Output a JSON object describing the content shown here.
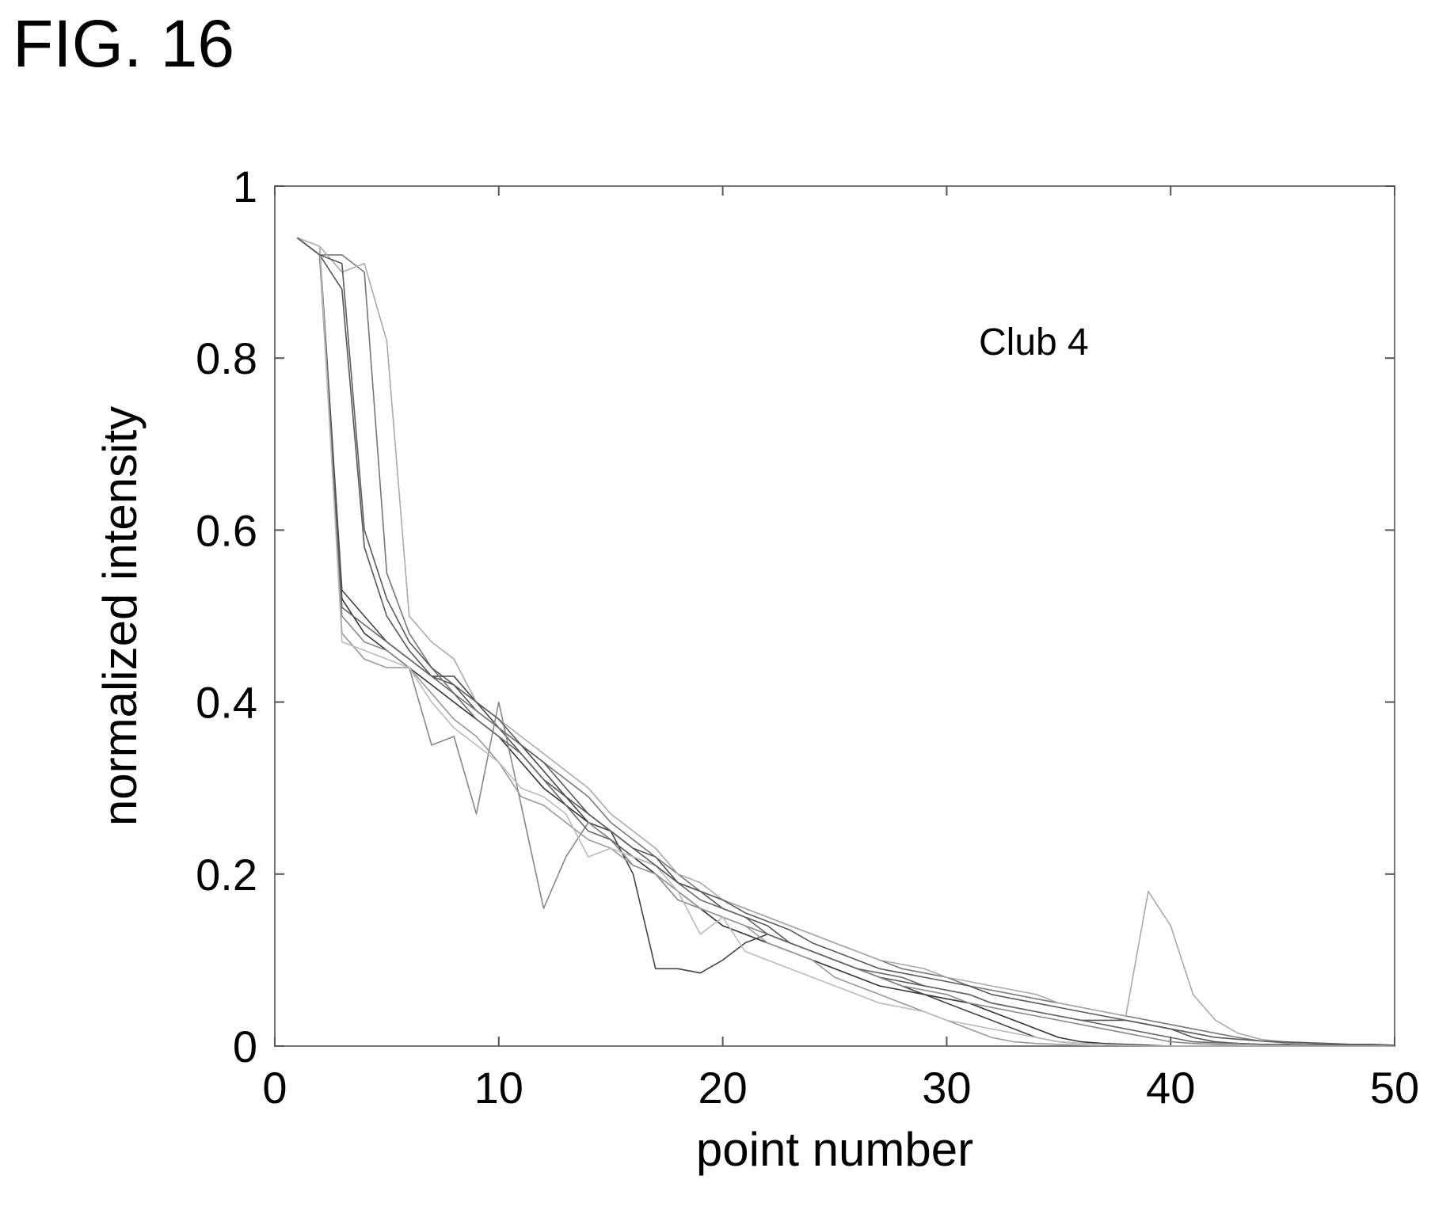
{
  "figure_label": "FIG. 16",
  "chart_data": {
    "type": "line",
    "title": "",
    "xlabel": "point number",
    "ylabel": "normalized intensity",
    "annotation": "Club 4",
    "xlim": [
      0,
      50
    ],
    "ylim": [
      0,
      1
    ],
    "xticks": [
      0,
      10,
      20,
      30,
      40,
      50
    ],
    "xtick_labels": [
      "0",
      "10",
      "20",
      "30",
      "40",
      "50"
    ],
    "yticks": [
      0,
      0.2,
      0.4,
      0.6,
      0.8,
      1
    ],
    "ytick_labels": [
      "0",
      "0.2",
      "0.4",
      "0.6",
      "0.8",
      "1"
    ],
    "grid": false,
    "legend": "none",
    "x": [
      1,
      2,
      3,
      4,
      5,
      6,
      7,
      8,
      9,
      10,
      11,
      12,
      13,
      14,
      15,
      16,
      17,
      18,
      19,
      20,
      21,
      22,
      23,
      24,
      25,
      26,
      27,
      28,
      29,
      30,
      31,
      32,
      33,
      34,
      35,
      36,
      37,
      38,
      39,
      40,
      41,
      42,
      43,
      44,
      45,
      46,
      47,
      48,
      49,
      50
    ],
    "series": [
      {
        "color": "#333333",
        "values": [
          0.94,
          0.92,
          0.52,
          0.48,
          0.46,
          0.44,
          0.42,
          0.4,
          0.38,
          0.36,
          0.33,
          0.3,
          0.28,
          0.26,
          0.24,
          0.22,
          0.2,
          0.18,
          0.16,
          0.14,
          0.13,
          0.12,
          0.11,
          0.1,
          0.09,
          0.08,
          0.07,
          0.065,
          0.06,
          0.055,
          0.05,
          0.04,
          0.03,
          0.02,
          0.01,
          0.005,
          0.003,
          0.002,
          0.001,
          0,
          0,
          0,
          0,
          0,
          0,
          0,
          0,
          0,
          0,
          0
        ]
      },
      {
        "color": "#555555",
        "values": [
          0.94,
          0.92,
          0.88,
          0.58,
          0.5,
          0.46,
          0.43,
          0.42,
          0.39,
          0.37,
          0.34,
          0.31,
          0.29,
          0.27,
          0.25,
          0.23,
          0.22,
          0.19,
          0.18,
          0.16,
          0.15,
          0.14,
          0.12,
          0.11,
          0.1,
          0.09,
          0.08,
          0.075,
          0.07,
          0.065,
          0.06,
          0.05,
          0.045,
          0.04,
          0.035,
          0.03,
          0.03,
          0.03,
          0.025,
          0.02,
          0.01,
          0.005,
          0.003,
          0.002,
          0.002,
          0.001,
          0.001,
          0.001,
          0.001,
          0.001
        ]
      },
      {
        "color": "#444444",
        "values": [
          0.94,
          0.93,
          0.53,
          0.5,
          0.47,
          0.45,
          0.43,
          0.43,
          0.4,
          0.37,
          0.35,
          0.32,
          0.29,
          0.26,
          0.25,
          0.2,
          0.09,
          0.09,
          0.085,
          0.1,
          0.12,
          0.13,
          0.12,
          0.11,
          0.1,
          0.09,
          0.08,
          0.07,
          0.06,
          0.05,
          0.04,
          0.03,
          0.02,
          0.01,
          0.005,
          0.003,
          0.002,
          0.001,
          0,
          0,
          0,
          0,
          0,
          0,
          0,
          0,
          0,
          0,
          0,
          0
        ]
      },
      {
        "color": "#777777",
        "values": [
          0.94,
          0.92,
          0.92,
          0.9,
          0.55,
          0.48,
          0.44,
          0.41,
          0.39,
          0.37,
          0.35,
          0.33,
          0.31,
          0.29,
          0.26,
          0.24,
          0.22,
          0.2,
          0.18,
          0.17,
          0.16,
          0.15,
          0.14,
          0.13,
          0.12,
          0.11,
          0.1,
          0.09,
          0.085,
          0.08,
          0.07,
          0.065,
          0.06,
          0.055,
          0.05,
          0.045,
          0.04,
          0.035,
          0.03,
          0.025,
          0.02,
          0.015,
          0.01,
          0.006,
          0.004,
          0.003,
          0.002,
          0.002,
          0.001,
          0.001
        ]
      },
      {
        "color": "#888888",
        "values": [
          0.94,
          0.93,
          0.5,
          0.47,
          0.46,
          0.44,
          0.35,
          0.36,
          0.27,
          0.4,
          0.28,
          0.16,
          0.22,
          0.26,
          0.24,
          0.21,
          0.2,
          0.17,
          0.16,
          0.15,
          0.14,
          0.13,
          0.12,
          0.11,
          0.1,
          0.09,
          0.08,
          0.07,
          0.065,
          0.06,
          0.05,
          0.045,
          0.04,
          0.035,
          0.03,
          0.025,
          0.02,
          0.015,
          0.01,
          0.005,
          0.003,
          0.002,
          0.001,
          0,
          0,
          0,
          0,
          0,
          0,
          0
        ]
      },
      {
        "color": "#999999",
        "values": [
          0.94,
          0.92,
          0.48,
          0.45,
          0.44,
          0.44,
          0.41,
          0.38,
          0.36,
          0.33,
          0.29,
          0.28,
          0.26,
          0.24,
          0.23,
          0.21,
          0.2,
          0.18,
          0.16,
          0.15,
          0.14,
          0.12,
          0.11,
          0.1,
          0.08,
          0.07,
          0.06,
          0.05,
          0.04,
          0.03,
          0.02,
          0.01,
          0.005,
          0.003,
          0.002,
          0.001,
          0,
          0,
          0,
          0,
          0,
          0,
          0,
          0,
          0,
          0,
          0,
          0,
          0,
          0
        ]
      },
      {
        "color": "#aaaaaa",
        "values": [
          0.94,
          0.93,
          0.9,
          0.91,
          0.82,
          0.5,
          0.47,
          0.45,
          0.4,
          0.38,
          0.36,
          0.34,
          0.32,
          0.3,
          0.27,
          0.25,
          0.23,
          0.2,
          0.19,
          0.17,
          0.16,
          0.15,
          0.14,
          0.13,
          0.12,
          0.11,
          0.1,
          0.095,
          0.09,
          0.08,
          0.075,
          0.07,
          0.065,
          0.06,
          0.05,
          0.045,
          0.04,
          0.035,
          0.18,
          0.14,
          0.06,
          0.03,
          0.015,
          0.008,
          0.005,
          0.004,
          0.003,
          0.002,
          0.001,
          0.001
        ]
      },
      {
        "color": "#666666",
        "values": [
          0.94,
          0.92,
          0.51,
          0.49,
          0.47,
          0.45,
          0.43,
          0.41,
          0.38,
          0.36,
          0.34,
          0.31,
          0.28,
          0.25,
          0.24,
          0.22,
          0.21,
          0.19,
          0.17,
          0.16,
          0.15,
          0.13,
          0.12,
          0.11,
          0.1,
          0.09,
          0.085,
          0.08,
          0.07,
          0.065,
          0.06,
          0.05,
          0.045,
          0.04,
          0.035,
          0.03,
          0.025,
          0.02,
          0.015,
          0.01,
          0.005,
          0.004,
          0.003,
          0.002,
          0.002,
          0.001,
          0.001,
          0.001,
          0.001,
          0.001
        ]
      },
      {
        "color": "#bbbbbb",
        "values": [
          0.94,
          0.93,
          0.47,
          0.46,
          0.45,
          0.44,
          0.4,
          0.37,
          0.35,
          0.33,
          0.3,
          0.29,
          0.27,
          0.22,
          0.23,
          0.22,
          0.21,
          0.18,
          0.13,
          0.15,
          0.11,
          0.1,
          0.09,
          0.08,
          0.07,
          0.06,
          0.05,
          0.045,
          0.04,
          0.03,
          0.025,
          0.02,
          0.015,
          0.01,
          0.005,
          0.003,
          0.002,
          0.001,
          0,
          0,
          0,
          0,
          0,
          0,
          0,
          0,
          0,
          0,
          0,
          0
        ]
      },
      {
        "color": "#5a5a5a",
        "values": [
          0.94,
          0.92,
          0.91,
          0.6,
          0.52,
          0.47,
          0.44,
          0.42,
          0.4,
          0.38,
          0.35,
          0.33,
          0.3,
          0.27,
          0.25,
          0.23,
          0.21,
          0.19,
          0.18,
          0.17,
          0.155,
          0.145,
          0.135,
          0.12,
          0.11,
          0.1,
          0.09,
          0.085,
          0.08,
          0.075,
          0.07,
          0.06,
          0.055,
          0.05,
          0.045,
          0.04,
          0.035,
          0.03,
          0.025,
          0.02,
          0.015,
          0.01,
          0.008,
          0.006,
          0.005,
          0.004,
          0.003,
          0.002,
          0.002,
          0.001
        ]
      }
    ]
  }
}
